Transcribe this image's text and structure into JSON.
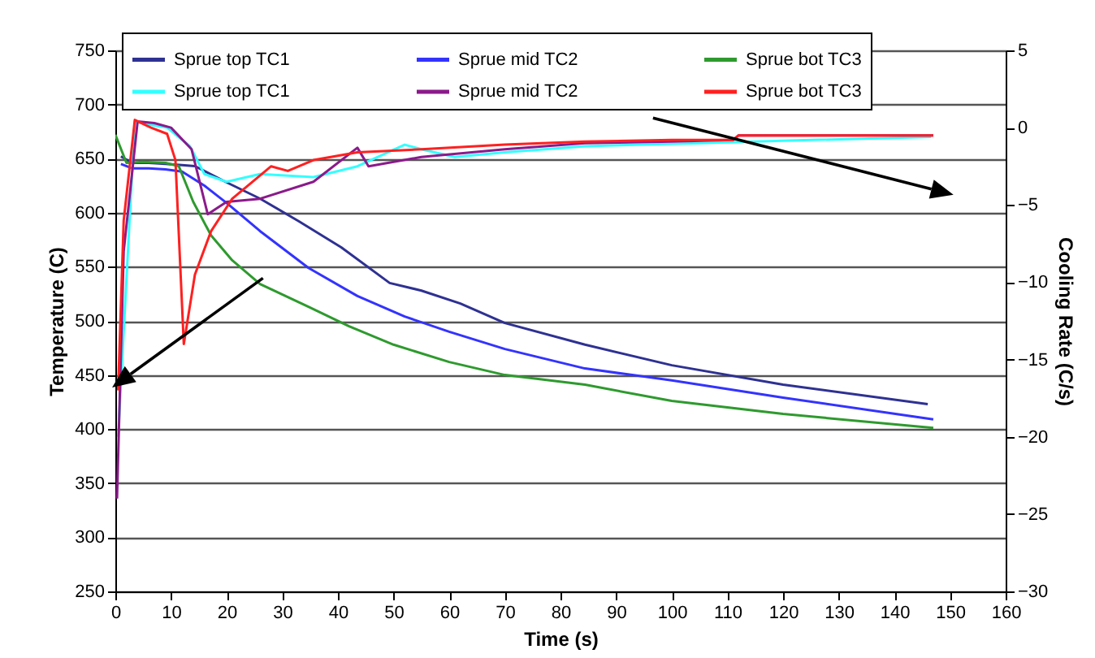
{
  "chart_data": {
    "type": "line",
    "xlabel": "Time (s)",
    "ylabel": "Temperature (C)",
    "y2label": "Cooling Rate (C/s)",
    "xlim": [
      0,
      160
    ],
    "xticks": [
      0,
      10,
      20,
      30,
      40,
      50,
      60,
      70,
      80,
      90,
      100,
      110,
      120,
      130,
      140,
      150,
      160
    ],
    "ylim": [
      250,
      750
    ],
    "yticks": [
      250,
      300,
      350,
      400,
      450,
      500,
      550,
      600,
      650,
      700,
      750
    ],
    "y2lim": [
      -30,
      5
    ],
    "y2ticks": [
      -30,
      -25,
      -20,
      -15,
      -10,
      -5,
      0,
      5
    ],
    "grid": "y",
    "legend": "top",
    "marker": "none",
    "line_style": "solid",
    "series": [
      {
        "name": "Sprue top TC1",
        "color": "#2e3192",
        "x": [
          1,
          3,
          6,
          9,
          12,
          14.3,
          20,
          26,
          33,
          40.6,
          49.3,
          55,
          62,
          70,
          84.4,
          100,
          120,
          146
        ],
        "values": [
          652,
          646,
          646,
          645,
          644,
          643,
          628,
          613,
          592,
          568,
          535,
          528,
          516,
          498,
          478,
          459,
          441,
          423
        ]
      },
      {
        "name": "Sprue mid TC2",
        "color": "#3333ff",
        "x": [
          1,
          3,
          6,
          9,
          12,
          16,
          20,
          26,
          34.7,
          43.5,
          52,
          60,
          70,
          84.4,
          100,
          120,
          147
        ],
        "values": [
          645,
          641,
          641,
          640,
          638,
          625,
          609,
          583,
          549,
          523,
          504,
          490,
          474,
          456,
          445,
          429,
          409
        ]
      },
      {
        "name": "Sprue bot TC3",
        "color": "#2e9a2e",
        "x": [
          0,
          2,
          5,
          9,
          11.4,
          14,
          17.2,
          21,
          26,
          34.7,
          42,
          50,
          60,
          70,
          84.4,
          100,
          120,
          147
        ],
        "values": [
          672,
          646,
          647,
          646,
          643,
          610,
          579,
          556,
          534,
          513,
          495,
          478,
          462,
          450,
          441,
          426,
          414,
          401
        ]
      },
      {
        "name": "Sprue top TC1",
        "color": "#33ffff",
        "axis": "y2",
        "x": [
          0.5,
          3.5,
          6,
          9.3,
          13.4,
          16,
          20,
          26,
          35.6,
          43.5,
          52,
          55,
          61,
          70,
          84.4,
          104.8,
          125,
          146.6
        ],
        "values": [
          -20,
          0.4,
          0.2,
          0,
          -1.2,
          -3,
          -3.5,
          -3,
          -3.2,
          -2.5,
          -1.1,
          -1.4,
          -1.9,
          -1.6,
          -1.2,
          -1,
          -0.8,
          -0.6
        ]
      },
      {
        "name": "Sprue mid TC2",
        "color": "#8b1a8b",
        "axis": "y2",
        "x": [
          0.3,
          1.5,
          4,
          7,
          10,
          13.7,
          16.6,
          20,
          26,
          35.6,
          43.5,
          45.5,
          55,
          70,
          84.4,
          100,
          111,
          112,
          130,
          147
        ],
        "values": [
          -24,
          -8,
          0.4,
          0.3,
          0,
          -1.4,
          -5.6,
          -4.8,
          -4.6,
          -3.5,
          -1.3,
          -2.5,
          -1.9,
          -1.4,
          -1,
          -0.9,
          -0.8,
          -0.5,
          -0.5,
          -0.5
        ]
      },
      {
        "name": "Sprue bot TC3",
        "color": "#ff2020",
        "axis": "y2",
        "x": [
          0.5,
          1.5,
          3.5,
          6.4,
          9.3,
          10.8,
          12.3,
          14.3,
          17.2,
          21,
          28,
          31,
          35.6,
          43.5,
          55,
          70,
          84.4,
          100,
          111,
          112,
          130,
          147
        ],
        "values": [
          -17,
          -6,
          0.5,
          0,
          -0.4,
          -2.1,
          -14,
          -9.5,
          -6.7,
          -4.6,
          -2.5,
          -2.8,
          -2.1,
          -1.6,
          -1.4,
          -1.1,
          -0.9,
          -0.8,
          -0.8,
          -0.5,
          -0.5,
          -0.5
        ]
      }
    ]
  }
}
